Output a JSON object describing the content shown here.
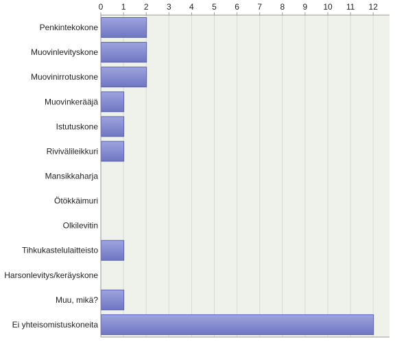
{
  "chart_data": {
    "type": "bar",
    "orientation": "horizontal",
    "categories": [
      "Penkintekokone",
      "Muovinlevityskone",
      "Muovinirrotuskone",
      "Muovinkerääjä",
      "Istutuskone",
      "Rivivälileikkuri",
      "Mansikkaharja",
      "Ötökkäimuri",
      "Olkilevitin",
      "Tihkukastelulaitteisto",
      "Harsonlevitys/keräyskone",
      "Muu, mikä?",
      "Ei yhteisomistuskoneita"
    ],
    "values": [
      2,
      2,
      2,
      1,
      1,
      1,
      0,
      0,
      0,
      1,
      0,
      1,
      12
    ],
    "xlim": [
      0,
      12.6
    ],
    "x_ticks": [
      0,
      1,
      2,
      3,
      4,
      5,
      6,
      7,
      8,
      9,
      10,
      11,
      12
    ],
    "x_tick_labels": [
      "0",
      "1",
      "2",
      "3",
      "4",
      "5",
      "6",
      "7",
      "8",
      "9",
      "10",
      "11",
      "12"
    ],
    "axis_position": "top",
    "grid": true,
    "legend": "none"
  },
  "colors": {
    "bar_fill_top": "#9ea4de",
    "bar_fill_bottom": "#6f76c2",
    "bar_stroke": "#5b62ad",
    "plot_background": "#eef2ea",
    "grid_line": "#d6dbd2",
    "axis_line": "#9a9a9a"
  }
}
